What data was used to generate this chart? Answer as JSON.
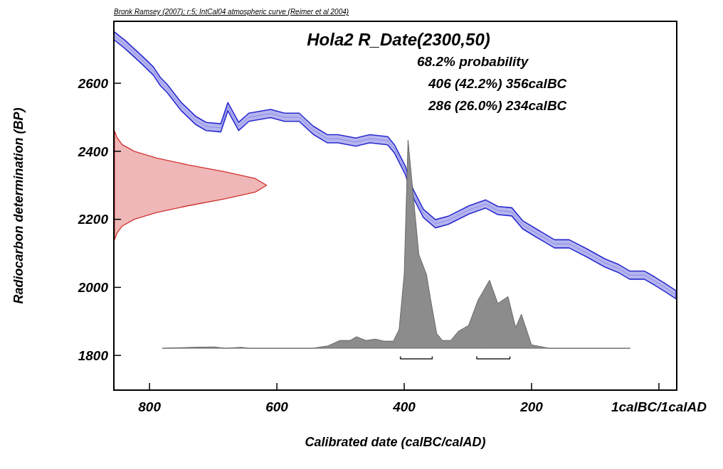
{
  "chart_data": {
    "type": "line",
    "title": "Hola2 R_Date(2300,50)",
    "xlabel": "Calibrated date (calBC/calAD)",
    "ylabel": "Radiocarbon determination (BP)",
    "annotations": [
      "Bronk Ramsey (2007); r:5; IntCal04 atmospheric curve (Reimer et al 2004)",
      "68.2% probability",
      "406 (42.2%) 356calBC",
      "286 (26.0%) 234calBC"
    ],
    "xlim": [
      856,
      -28
    ],
    "ylim": [
      1698,
      2782
    ],
    "xticks": [
      800,
      600,
      400,
      200,
      {
        "value": 0,
        "label": "1calBC/1calAD"
      }
    ],
    "yticks": [
      1800,
      2000,
      2200,
      2400,
      2600
    ],
    "grid": false,
    "series": [
      {
        "type": "line",
        "color": "#2b2bd0",
        "x": [
          856,
          839,
          811,
          794,
          783,
          772,
          750,
          727,
          711,
          688,
          677,
          660,
          644,
          610,
          588,
          565,
          543,
          521,
          504,
          476,
          454,
          426,
          415,
          398,
          387,
          370,
          351,
          331,
          298,
          272,
          253,
          231,
          214,
          192,
          164,
          141,
          113,
          85,
          63,
          46,
          23,
          7,
          -10,
          -27
        ],
        "values": [
          2740,
          2715,
          2667,
          2636,
          2605,
          2584,
          2531,
          2490,
          2473,
          2469,
          2531,
          2473,
          2500,
          2511,
          2500,
          2500,
          2462,
          2437,
          2437,
          2427,
          2437,
          2431,
          2406,
          2343,
          2280,
          2218,
          2187,
          2197,
          2228,
          2245,
          2226,
          2222,
          2184,
          2159,
          2128,
          2128,
          2101,
          2072,
          2055,
          2036,
          2036,
          2019,
          1999,
          1978
        ],
        "lower": [
          2728,
          2703,
          2655,
          2624,
          2593,
          2572,
          2519,
          2478,
          2461,
          2457,
          2519,
          2461,
          2488,
          2499,
          2488,
          2488,
          2450,
          2425,
          2425,
          2415,
          2425,
          2419,
          2394,
          2331,
          2268,
          2206,
          2175,
          2185,
          2216,
          2233,
          2214,
          2210,
          2172,
          2147,
          2116,
          2116,
          2089,
          2060,
          2043,
          2024,
          2024,
          2007,
          1987,
          1966
        ],
        "upper": [
          2752,
          2727,
          2679,
          2648,
          2617,
          2596,
          2543,
          2502,
          2485,
          2481,
          2543,
          2485,
          2512,
          2523,
          2512,
          2512,
          2474,
          2449,
          2449,
          2439,
          2449,
          2443,
          2418,
          2355,
          2292,
          2230,
          2199,
          2209,
          2240,
          2257,
          2238,
          2234,
          2196,
          2171,
          2140,
          2140,
          2113,
          2084,
          2067,
          2048,
          2048,
          2031,
          2011,
          1990
        ]
      },
      {
        "type": "area",
        "color": "#d03030",
        "x": [
          855,
          851,
          843,
          824,
          789,
          739,
          682,
          634,
          616,
          634,
          682,
          739,
          789,
          824,
          843,
          851,
          855
        ],
        "values": [
          2460,
          2440,
          2420,
          2400,
          2380,
          2360,
          2340,
          2320,
          2300,
          2280,
          2260,
          2240,
          2220,
          2200,
          2180,
          2160,
          2140
        ]
      },
      {
        "type": "area",
        "color": "#8c8c8c",
        "x": [
          780,
          731,
          699,
          680,
          656,
          644,
          544,
          520,
          501,
          485,
          475,
          460,
          445,
          432,
          417,
          408,
          400,
          394,
          377,
          365,
          358,
          349,
          340,
          327,
          315,
          299,
          284,
          266,
          253,
          237,
          225,
          216,
          200,
          172,
          45
        ],
        "values": [
          1821,
          1824,
          1825,
          1821,
          1824,
          1821,
          1821,
          1828,
          1844,
          1844,
          1855,
          1844,
          1848,
          1842,
          1842,
          1877,
          2040,
          2433,
          2097,
          2038,
          1959,
          1865,
          1844,
          1844,
          1871,
          1888,
          1963,
          2021,
          1953,
          1973,
          1882,
          1921,
          1831,
          1821,
          1821
        ]
      },
      {
        "color": "#222222",
        "x": [
          406,
          406,
          356,
          356
        ],
        "values": [
          1797,
          1790,
          1790,
          1797
        ]
      },
      {
        "color": "#222222",
        "x": [
          286,
          286,
          234,
          234
        ],
        "values": [
          1797,
          1790,
          1790,
          1797
        ]
      }
    ]
  }
}
